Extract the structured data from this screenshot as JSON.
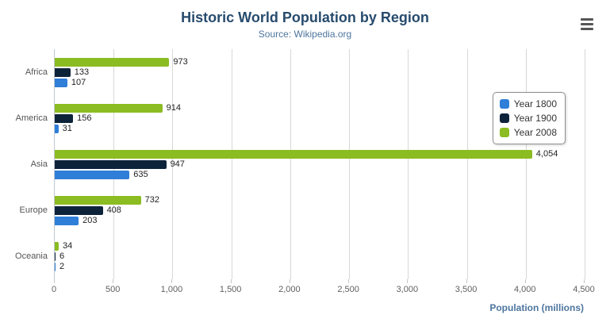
{
  "title": "Historic World Population by Region",
  "subtitle": "Source: Wikipedia.org",
  "menu": {
    "icon": "hamburger-icon"
  },
  "chart_data": {
    "type": "bar",
    "orientation": "horizontal",
    "title": "Historic World Population by Region",
    "subtitle": "Source: Wikipedia.org",
    "categories": [
      "Africa",
      "America",
      "Asia",
      "Europe",
      "Oceania"
    ],
    "series": [
      {
        "name": "Year 1800",
        "color": "#2f7ed8",
        "values": [
          107,
          31,
          635,
          203,
          2
        ]
      },
      {
        "name": "Year 1900",
        "color": "#0d233a",
        "values": [
          133,
          156,
          947,
          408,
          6
        ]
      },
      {
        "name": "Year 2008",
        "color": "#8bbc21",
        "values": [
          973,
          914,
          4054,
          732,
          34
        ]
      }
    ],
    "bar_order_top_to_bottom": [
      "Year 2008",
      "Year 1900",
      "Year 1800"
    ],
    "data_labels_visible": true,
    "xlabel": "Population (millions)",
    "ylabel": "",
    "xlim": [
      0,
      4500
    ],
    "x_ticks": [
      0,
      500,
      1000,
      1500,
      2000,
      2500,
      3000,
      3500,
      4000,
      4500
    ],
    "x_tick_labels": [
      "0",
      "500",
      "1,000",
      "1,500",
      "2,000",
      "2,500",
      "3,000",
      "3,500",
      "4,000",
      "4,500"
    ],
    "grid": true,
    "legend_position": "right-overlay"
  },
  "legend": {
    "items": [
      {
        "label": "Year 1800",
        "color": "#2f7ed8"
      },
      {
        "label": "Year 1900",
        "color": "#0d233a"
      },
      {
        "label": "Year 2008",
        "color": "#8bbc21"
      }
    ]
  }
}
